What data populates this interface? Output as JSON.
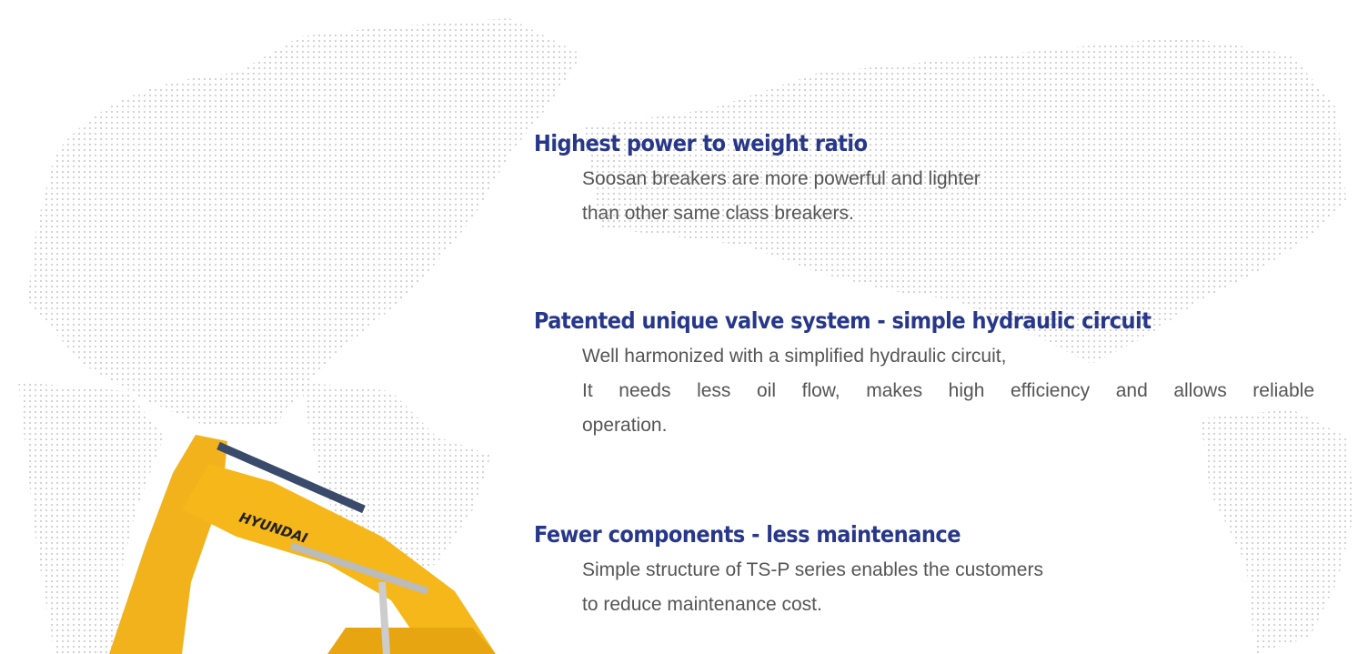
{
  "features": [
    {
      "title": "Highest power to weight ratio",
      "lines": [
        "Soosan breakers are more powerful and lighter",
        "than other same class breakers."
      ]
    },
    {
      "title": "Patented unique valve system - simple hydraulic circuit",
      "lines": [
        "Well harmonized with a simplified hydraulic circuit,",
        "It needs less oil flow, makes high efficiency and allows reliable",
        "operation."
      ]
    },
    {
      "title": "Fewer components - less maintenance",
      "lines": [
        "Simple structure of TS-P series enables the customers",
        "to reduce maintenance cost."
      ]
    }
  ],
  "image": {
    "brand": "HYUNDAI"
  }
}
